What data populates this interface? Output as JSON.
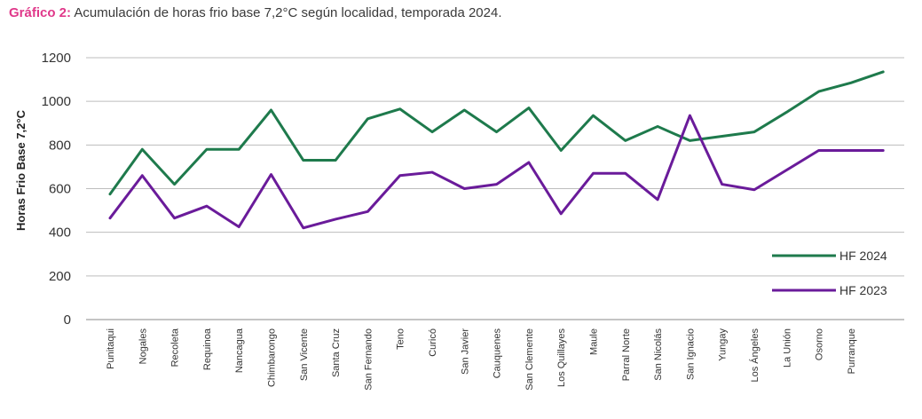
{
  "title": {
    "prefix": "Gráfico 2:",
    "text": "Acumulación de horas frio base 7,2°C según localidad, temporada 2024."
  },
  "chart_data": {
    "type": "line",
    "ylabel": "Horas Frio Base 7,2°C",
    "xlabel": "",
    "ylim": [
      0,
      1200
    ],
    "yticks": [
      0,
      200,
      400,
      600,
      800,
      1000,
      1200
    ],
    "grid": true,
    "legend_position": "right",
    "categories": [
      "Punitaqui",
      "Nogales",
      "Recoleta",
      "Requinoa",
      "Nancagua",
      "Chimbarongo",
      "San Vicente",
      "Santa Cruz",
      "San Fernando",
      "Teno",
      "Curicó",
      "San Javier",
      "Cauquenes",
      "San Clemente",
      "Los Quillayes",
      "Maule",
      "Parral Norte",
      "San Nicolás",
      "San Ignacio",
      "Yungay",
      "Los Ángeles",
      "La Unión",
      "Osorno",
      "Purranque",
      ""
    ],
    "series": [
      {
        "name": "HF 2024",
        "color": "#1e7a4c",
        "values": [
          575,
          780,
          620,
          780,
          780,
          960,
          730,
          730,
          920,
          965,
          860,
          960,
          860,
          970,
          775,
          935,
          820,
          885,
          820,
          840,
          860,
          950,
          1045,
          1085,
          1135
        ]
      },
      {
        "name": "HF 2023",
        "color": "#6a1b9a",
        "values": [
          465,
          660,
          465,
          520,
          425,
          665,
          420,
          460,
          495,
          660,
          675,
          600,
          620,
          720,
          485,
          670,
          670,
          550,
          935,
          620,
          595,
          685,
          775,
          775,
          775
        ]
      }
    ]
  }
}
